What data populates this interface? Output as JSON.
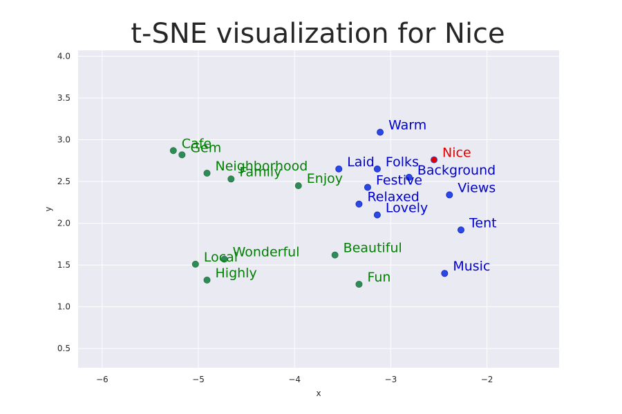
{
  "chart_data": {
    "type": "scatter",
    "title": "t-SNE visualization for Nice",
    "xlabel": "x",
    "ylabel": "y",
    "xlim": [
      -6.25,
      -1.25
    ],
    "ylim": [
      0.27,
      4.07
    ],
    "xticks": [
      -6,
      -5,
      -4,
      -3,
      -2
    ],
    "xtick_labels": [
      "−6",
      "−5",
      "−4",
      "−3",
      "−2"
    ],
    "yticks": [
      0.5,
      1.0,
      1.5,
      2.0,
      2.5,
      3.0,
      3.5,
      4.0
    ],
    "ytick_labels": [
      "0.5",
      "1.0",
      "1.5",
      "2.0",
      "2.5",
      "3.0",
      "3.5",
      "4.0"
    ],
    "grid": true,
    "background": "#eaeaf2",
    "colors": {
      "target": "#e00000",
      "blue": "#0000cc",
      "green": "#008000",
      "blue_marker": "#2b47e6",
      "green_marker": "#2e8b57"
    },
    "points": [
      {
        "label": "Nice",
        "x": -2.55,
        "y": 2.76,
        "group": "target"
      },
      {
        "label": "Warm",
        "x": -3.11,
        "y": 3.09,
        "group": "blue"
      },
      {
        "label": "Laid",
        "x": -3.54,
        "y": 2.65,
        "group": "blue"
      },
      {
        "label": "Folks",
        "x": -3.14,
        "y": 2.65,
        "group": "blue"
      },
      {
        "label": "Background",
        "x": -2.81,
        "y": 2.55,
        "group": "blue"
      },
      {
        "label": "Festive",
        "x": -3.24,
        "y": 2.43,
        "group": "blue"
      },
      {
        "label": "Views",
        "x": -2.39,
        "y": 2.34,
        "group": "blue"
      },
      {
        "label": "Relaxed",
        "x": -3.33,
        "y": 2.23,
        "group": "blue"
      },
      {
        "label": "Lovely",
        "x": -3.14,
        "y": 2.1,
        "group": "blue"
      },
      {
        "label": "Tent",
        "x": -2.27,
        "y": 1.92,
        "group": "blue"
      },
      {
        "label": "Music",
        "x": -2.44,
        "y": 1.4,
        "group": "blue"
      },
      {
        "label": "Cafe",
        "x": -5.26,
        "y": 2.87,
        "group": "green"
      },
      {
        "label": "Gem",
        "x": -5.17,
        "y": 2.82,
        "group": "green"
      },
      {
        "label": "Neighborhood",
        "x": -4.91,
        "y": 2.6,
        "group": "green"
      },
      {
        "label": "Family",
        "x": -4.66,
        "y": 2.53,
        "group": "green"
      },
      {
        "label": "Enjoy",
        "x": -3.96,
        "y": 2.45,
        "group": "green"
      },
      {
        "label": "Beautiful",
        "x": -3.58,
        "y": 1.62,
        "group": "green"
      },
      {
        "label": "Local",
        "x": -5.03,
        "y": 1.51,
        "group": "green"
      },
      {
        "label": "Wonderful",
        "x": -4.73,
        "y": 1.57,
        "group": "green"
      },
      {
        "label": "Highly",
        "x": -4.91,
        "y": 1.32,
        "group": "green"
      },
      {
        "label": "Fun",
        "x": -3.33,
        "y": 1.27,
        "group": "green"
      }
    ]
  }
}
